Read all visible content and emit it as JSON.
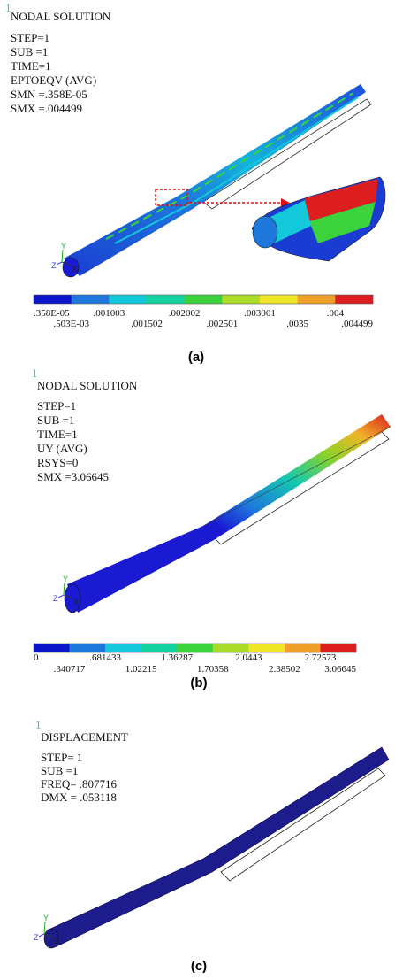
{
  "panels": [
    {
      "id": "1",
      "header": [
        "NODAL SOLUTION",
        "STEP=1",
        "SUB =1",
        "TIME=1",
        "EPTOEQV  (AVG)",
        "SMN =.358E-05",
        "SMX =.004499"
      ],
      "legend": {
        "colors": [
          "#0a14c8",
          "#1e78dc",
          "#14c8dc",
          "#14d2a0",
          "#3cd23c",
          "#aadc28",
          "#f0e628",
          "#f0a028",
          "#dc1e1e"
        ],
        "labels": [
          ".358E-05",
          ".503E-03",
          ".001003",
          ".001502",
          ".002002",
          ".002501",
          ".003001",
          ".0035",
          ".004",
          ".004499"
        ]
      },
      "axes": [
        "X",
        "Y",
        "Z"
      ],
      "caption": "(a)"
    },
    {
      "id": "1",
      "header": [
        "NODAL SOLUTION",
        "STEP=1",
        "SUB =1",
        "TIME=1",
        "UY       (AVG)",
        "RSYS=0",
        "SMX =3.06645"
      ],
      "legend": {
        "colors": [
          "#0a14c8",
          "#1e78dc",
          "#14c8dc",
          "#14d2a0",
          "#3cd23c",
          "#aadc28",
          "#f0e628",
          "#f0a028",
          "#dc1e1e"
        ],
        "labels": [
          "0",
          ".340717",
          ".681433",
          "1.02215",
          "1.36287",
          "1.70358",
          "2.0443",
          "2.38502",
          "2.72573",
          "3.06645"
        ]
      },
      "axes": [
        "X",
        "Y",
        "Z"
      ],
      "caption": "(b)"
    },
    {
      "id": "1",
      "header": [
        "DISPLACEMENT",
        "STEP= 1",
        "SUB  =1",
        "FREQ= .807716",
        "DMX = .053118"
      ],
      "axes": [
        "X",
        "Y",
        "Z"
      ],
      "caption": "(c)"
    }
  ]
}
